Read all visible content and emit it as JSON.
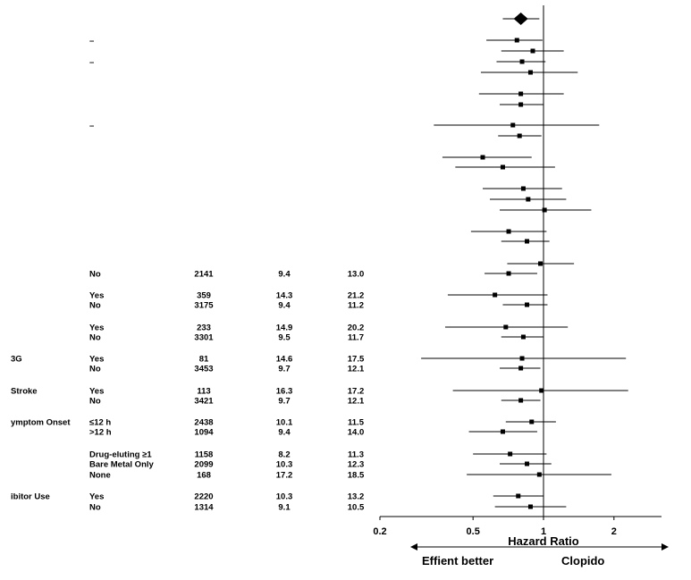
{
  "chart_data": {
    "type": "forest",
    "title": "",
    "xlabel": "Hazard Ratio",
    "x_scale": "log",
    "xlim": [
      0.2,
      3.2
    ],
    "x_ticks": [
      {
        "value": 0.2,
        "label": "0.2"
      },
      {
        "value": 0.5,
        "label": "0.5"
      },
      {
        "value": 1,
        "label": "1"
      },
      {
        "value": 2,
        "label": "2"
      }
    ],
    "reference_line": 1,
    "direction_labels": {
      "left": "Effient better",
      "right": "Clopido"
    },
    "overall": {
      "hr": 0.8,
      "lo": 0.67,
      "hi": 0.96
    },
    "rows": [
      {
        "category": "",
        "level": "–",
        "n": "",
        "rate_a": "",
        "rate_b": "",
        "hr": 0.77,
        "lo": 0.57,
        "hi": 0.99
      },
      {
        "category": "",
        "level": "",
        "n": "",
        "rate_a": "",
        "rate_b": "",
        "hr": 0.9,
        "lo": 0.66,
        "hi": 1.22
      },
      {
        "category": "",
        "level": "–",
        "n": "",
        "rate_a": "",
        "rate_b": "",
        "hr": 0.81,
        "lo": 0.63,
        "hi": 1.02
      },
      {
        "category": "",
        "level": "",
        "n": "",
        "rate_a": "",
        "rate_b": "",
        "hr": 0.88,
        "lo": 0.54,
        "hi": 1.4
      },
      {
        "category": "",
        "level": "",
        "n": "",
        "rate_a": "",
        "rate_b": "",
        "hr": 0.8,
        "lo": 0.53,
        "hi": 1.22
      },
      {
        "category": "",
        "level": "",
        "n": "",
        "rate_a": "",
        "rate_b": "",
        "hr": 0.8,
        "lo": 0.65,
        "hi": 1.0
      },
      {
        "category": "",
        "level": "–",
        "n": "",
        "rate_a": "",
        "rate_b": "",
        "hr": 0.74,
        "lo": 0.34,
        "hi": 1.73
      },
      {
        "category": "",
        "level": "",
        "n": "",
        "rate_a": "",
        "rate_b": "",
        "hr": 0.79,
        "lo": 0.64,
        "hi": 0.98
      },
      {
        "category": "",
        "level": "",
        "n": "",
        "rate_a": "",
        "rate_b": "",
        "hr": 0.55,
        "lo": 0.37,
        "hi": 0.89
      },
      {
        "category": "",
        "level": "",
        "n": "",
        "rate_a": "",
        "rate_b": "",
        "hr": 0.67,
        "lo": 0.42,
        "hi": 1.12
      },
      {
        "category": "",
        "level": "",
        "n": "",
        "rate_a": "",
        "rate_b": "",
        "hr": 0.82,
        "lo": 0.55,
        "hi": 1.2
      },
      {
        "category": "",
        "level": "",
        "n": "",
        "rate_a": "",
        "rate_b": "",
        "hr": 0.86,
        "lo": 0.59,
        "hi": 1.25
      },
      {
        "category": "",
        "level": "",
        "n": "",
        "rate_a": "",
        "rate_b": "",
        "hr": 1.01,
        "lo": 0.65,
        "hi": 1.6
      },
      {
        "category": "",
        "level": "",
        "n": "",
        "rate_a": "",
        "rate_b": "",
        "hr": 0.71,
        "lo": 0.49,
        "hi": 1.03
      },
      {
        "category": "",
        "level": "",
        "n": "",
        "rate_a": "",
        "rate_b": "",
        "hr": 0.85,
        "lo": 0.66,
        "hi": 1.06
      },
      {
        "category": "",
        "level": "",
        "n": "",
        "rate_a": "",
        "rate_b": "",
        "hr": 0.97,
        "lo": 0.7,
        "hi": 1.35
      },
      {
        "category": "",
        "level": "No",
        "n": "2141",
        "rate_a": "9.4",
        "rate_b": "13.0",
        "hr": 0.71,
        "lo": 0.56,
        "hi": 0.94
      },
      {
        "category": "",
        "level": "Yes",
        "n": "359",
        "rate_a": "14.3",
        "rate_b": "21.2",
        "hr": 0.62,
        "lo": 0.39,
        "hi": 1.04
      },
      {
        "category": "",
        "level": "No",
        "n": "3175",
        "rate_a": "9.4",
        "rate_b": "11.2",
        "hr": 0.85,
        "lo": 0.67,
        "hi": 1.04
      },
      {
        "category": "",
        "level": "Yes",
        "n": "233",
        "rate_a": "14.9",
        "rate_b": "20.2",
        "hr": 0.69,
        "lo": 0.38,
        "hi": 1.27
      },
      {
        "category": "",
        "level": "No",
        "n": "3301",
        "rate_a": "9.5",
        "rate_b": "11.7",
        "hr": 0.82,
        "lo": 0.66,
        "hi": 1.0
      },
      {
        "category": "3G",
        "level": "Yes",
        "n": "81",
        "rate_a": "14.6",
        "rate_b": "17.5",
        "hr": 0.81,
        "lo": 0.3,
        "hi": 2.25
      },
      {
        "category": "",
        "level": "No",
        "n": "3453",
        "rate_a": "9.7",
        "rate_b": "12.1",
        "hr": 0.8,
        "lo": 0.65,
        "hi": 0.97
      },
      {
        "category": "Stroke",
        "level": "Yes",
        "n": "113",
        "rate_a": "16.3",
        "rate_b": "17.2",
        "hr": 0.98,
        "lo": 0.41,
        "hi": 2.3
      },
      {
        "category": "",
        "level": "No",
        "n": "3421",
        "rate_a": "9.7",
        "rate_b": "12.1",
        "hr": 0.8,
        "lo": 0.66,
        "hi": 0.97
      },
      {
        "category": "ymptom Onset",
        "level": "≤12 h",
        "n": "2438",
        "rate_a": "10.1",
        "rate_b": "11.5",
        "hr": 0.89,
        "lo": 0.69,
        "hi": 1.13
      },
      {
        "category": "",
        "level": ">12 h",
        "n": "1094",
        "rate_a": "9.4",
        "rate_b": "14.0",
        "hr": 0.67,
        "lo": 0.48,
        "hi": 0.94
      },
      {
        "category": "",
        "level": "Drug-eluting ≥1",
        "n": "1158",
        "rate_a": "8.2",
        "rate_b": "11.3",
        "hr": 0.72,
        "lo": 0.5,
        "hi": 1.03
      },
      {
        "category": "",
        "level": "Bare Metal Only",
        "n": "2099",
        "rate_a": "10.3",
        "rate_b": "12.3",
        "hr": 0.85,
        "lo": 0.65,
        "hi": 1.08
      },
      {
        "category": "",
        "level": "None",
        "n": "168",
        "rate_a": "17.2",
        "rate_b": "18.5",
        "hr": 0.96,
        "lo": 0.47,
        "hi": 1.95
      },
      {
        "category": "ibitor Use",
        "level": "Yes",
        "n": "2220",
        "rate_a": "10.3",
        "rate_b": "13.2",
        "hr": 0.78,
        "lo": 0.61,
        "hi": 1.0
      },
      {
        "category": "",
        "level": "No",
        "n": "1314",
        "rate_a": "9.1",
        "rate_b": "10.5",
        "hr": 0.88,
        "lo": 0.62,
        "hi": 1.25
      }
    ]
  }
}
